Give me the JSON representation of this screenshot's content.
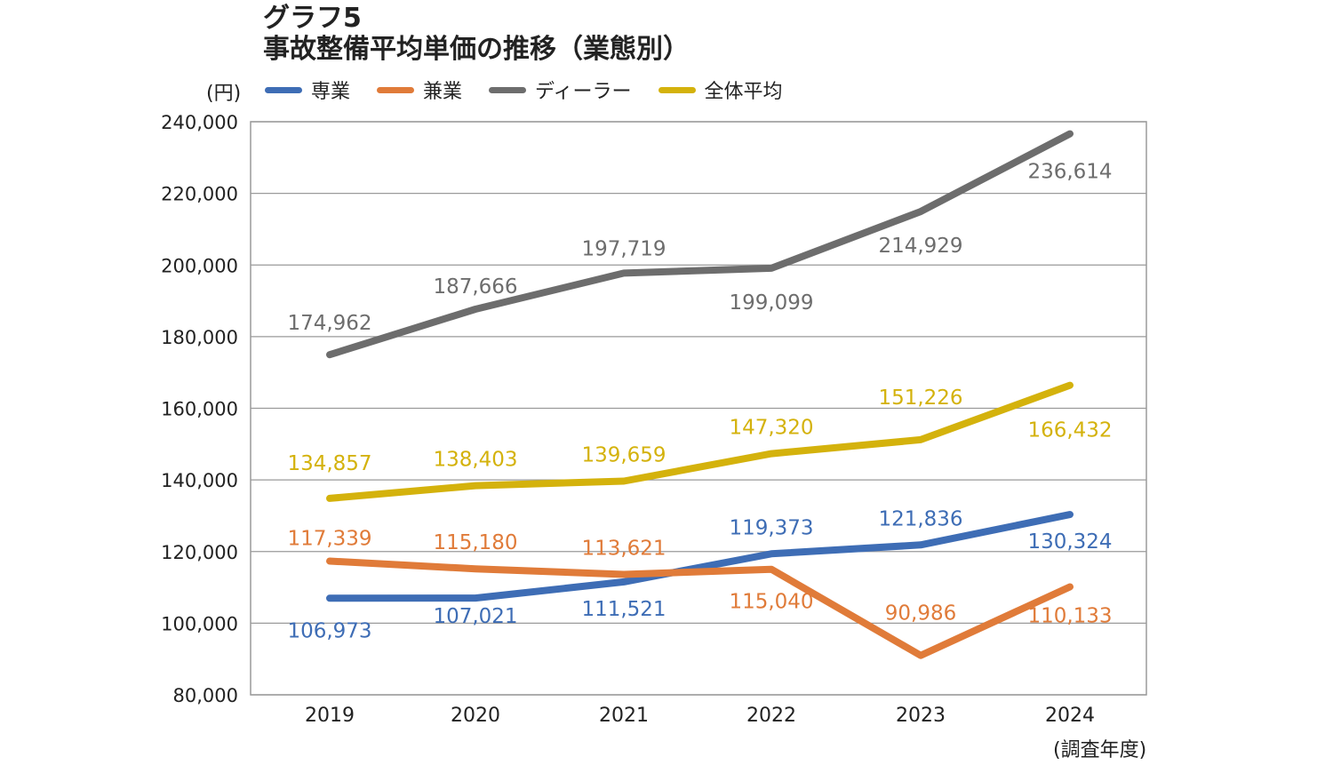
{
  "chart_data": {
    "type": "line",
    "title": "グラフ5",
    "subtitle": "事故整備平均単価の推移（業態別）",
    "ylabel": "(円)",
    "xlabel": "(調査年度)",
    "x": [
      "2019",
      "2020",
      "2021",
      "2022",
      "2023",
      "2024"
    ],
    "ylim": [
      80000,
      240000
    ],
    "yticks": [
      80000,
      100000,
      120000,
      140000,
      160000,
      180000,
      200000,
      220000,
      240000
    ],
    "ytick_labels": [
      "80,000",
      "100,000",
      "120,000",
      "140,000",
      "160,000",
      "180,000",
      "200,000",
      "220,000",
      "240,000"
    ],
    "grid": true,
    "legend_position": "top",
    "series": [
      {
        "name": "専業",
        "color": "#3e6db5",
        "values": [
          106973,
          107021,
          111521,
          119373,
          121836,
          130324
        ],
        "labels": [
          "106,973",
          "107,021",
          "111,521",
          "119,373",
          "121,836",
          "130,324"
        ]
      },
      {
        "name": "兼業",
        "color": "#e07b39",
        "values": [
          117339,
          115180,
          113621,
          115040,
          90986,
          110133
        ],
        "labels": [
          "117,339",
          "115,180",
          "113,621",
          "115,040",
          "90,986",
          "110,133"
        ]
      },
      {
        "name": "ディーラー",
        "color": "#6d6d6d",
        "values": [
          174962,
          187666,
          197719,
          199099,
          214929,
          236614
        ],
        "labels": [
          "174,962",
          "187,666",
          "197,719",
          "199,099",
          "214,929",
          "236,614"
        ]
      },
      {
        "name": "全体平均",
        "color": "#d4b20c",
        "values": [
          134857,
          138403,
          139659,
          147320,
          151226,
          166432
        ],
        "labels": [
          "134,857",
          "138,403",
          "139,659",
          "147,320",
          "151,226",
          "166,432"
        ]
      }
    ]
  }
}
